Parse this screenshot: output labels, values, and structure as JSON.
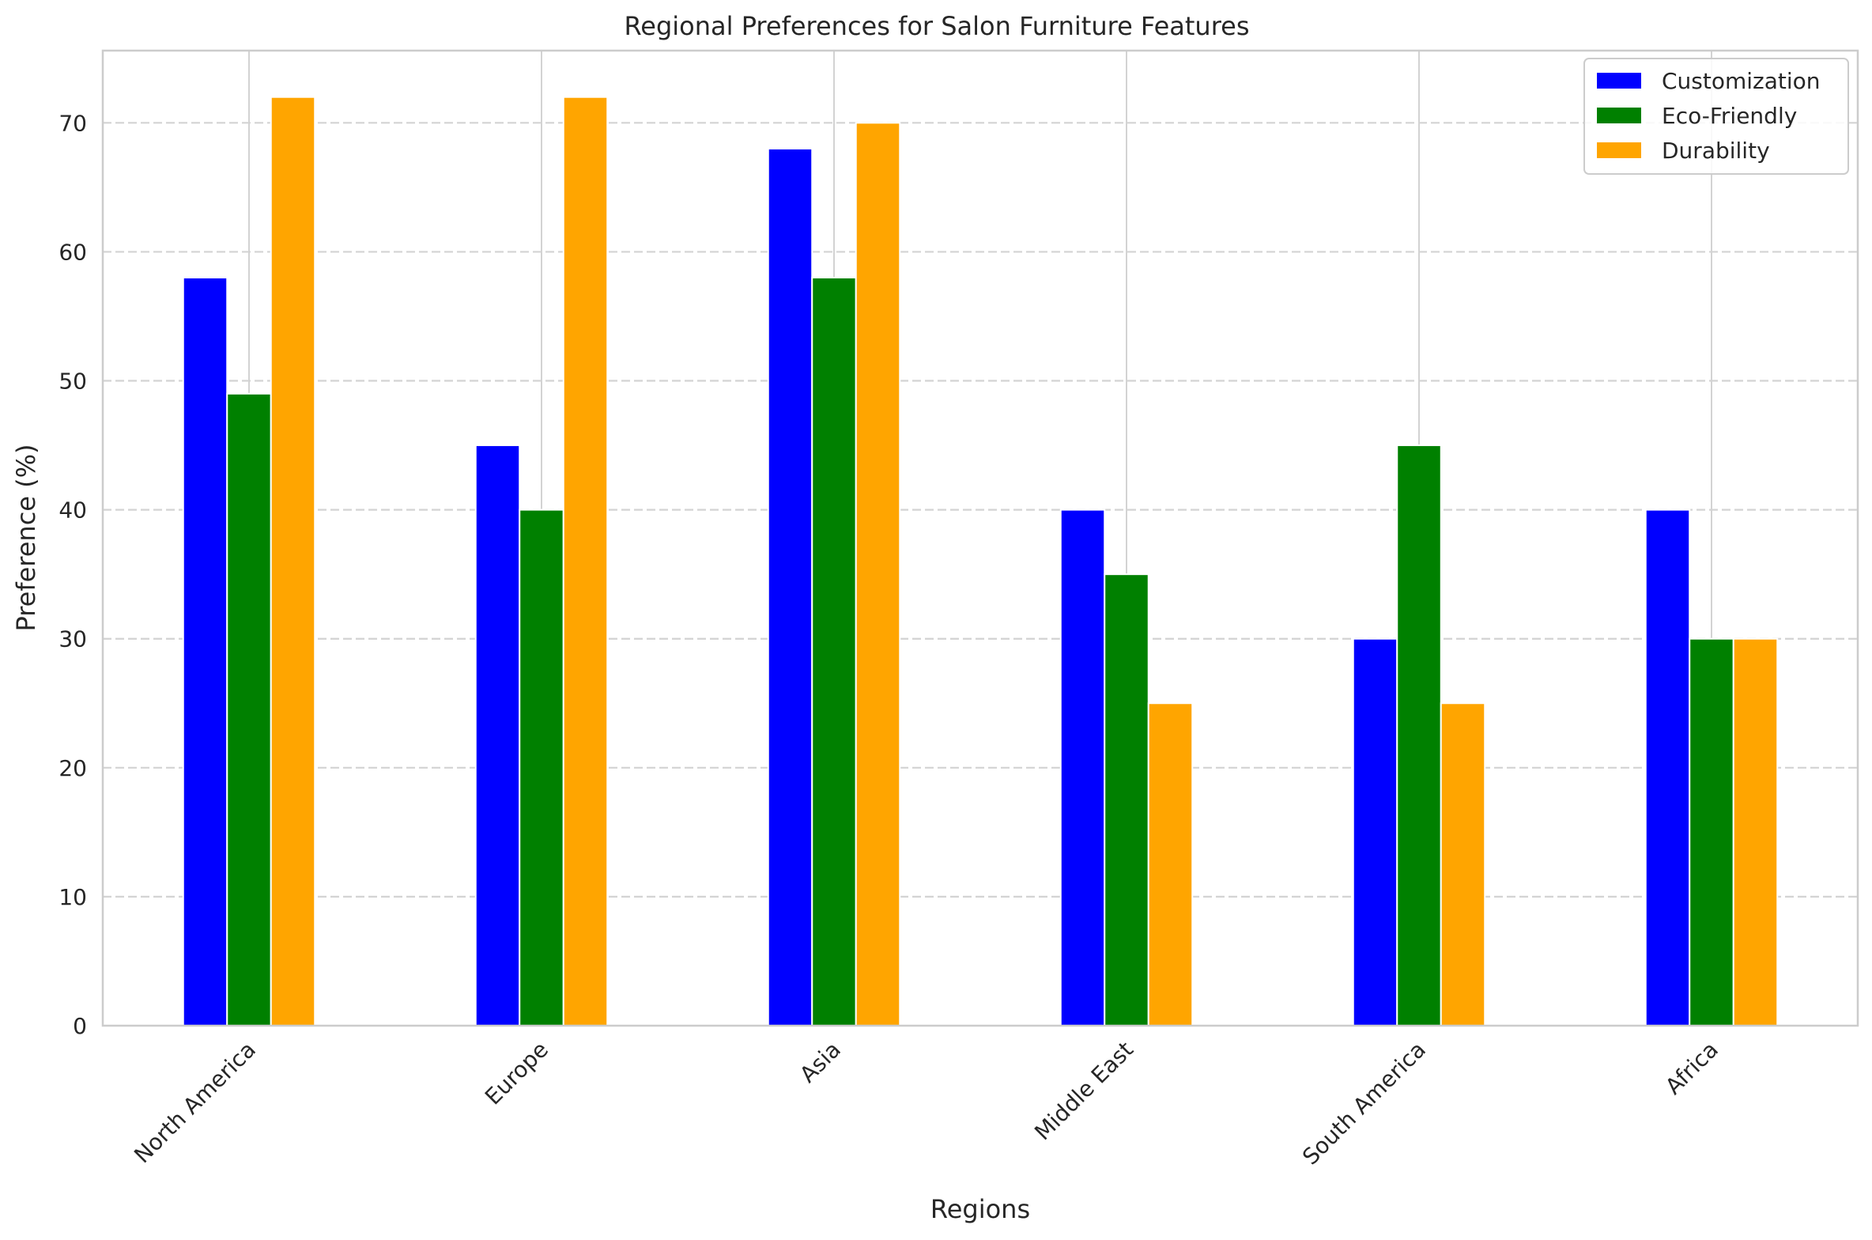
{
  "chart_data": {
    "type": "bar",
    "title": "Regional Preferences for Salon Furniture Features",
    "xlabel": "Regions",
    "ylabel": "Preference (%)",
    "categories": [
      "North America",
      "Europe",
      "Asia",
      "Middle East",
      "South America",
      "Africa"
    ],
    "series": [
      {
        "name": "Customization",
        "color": "#0000ff",
        "values": [
          58,
          45,
          68,
          40,
          30,
          40
        ]
      },
      {
        "name": "Eco-Friendly",
        "color": "#008000",
        "values": [
          49,
          40,
          58,
          35,
          45,
          30
        ]
      },
      {
        "name": "Durability",
        "color": "#ffa500",
        "values": [
          72,
          72,
          70,
          25,
          25,
          30
        ]
      }
    ],
    "ylim": [
      0,
      75.6
    ],
    "yticks": [
      0,
      10,
      20,
      30,
      40,
      50,
      60,
      70
    ],
    "grid": true,
    "legend_position": "top-right"
  }
}
